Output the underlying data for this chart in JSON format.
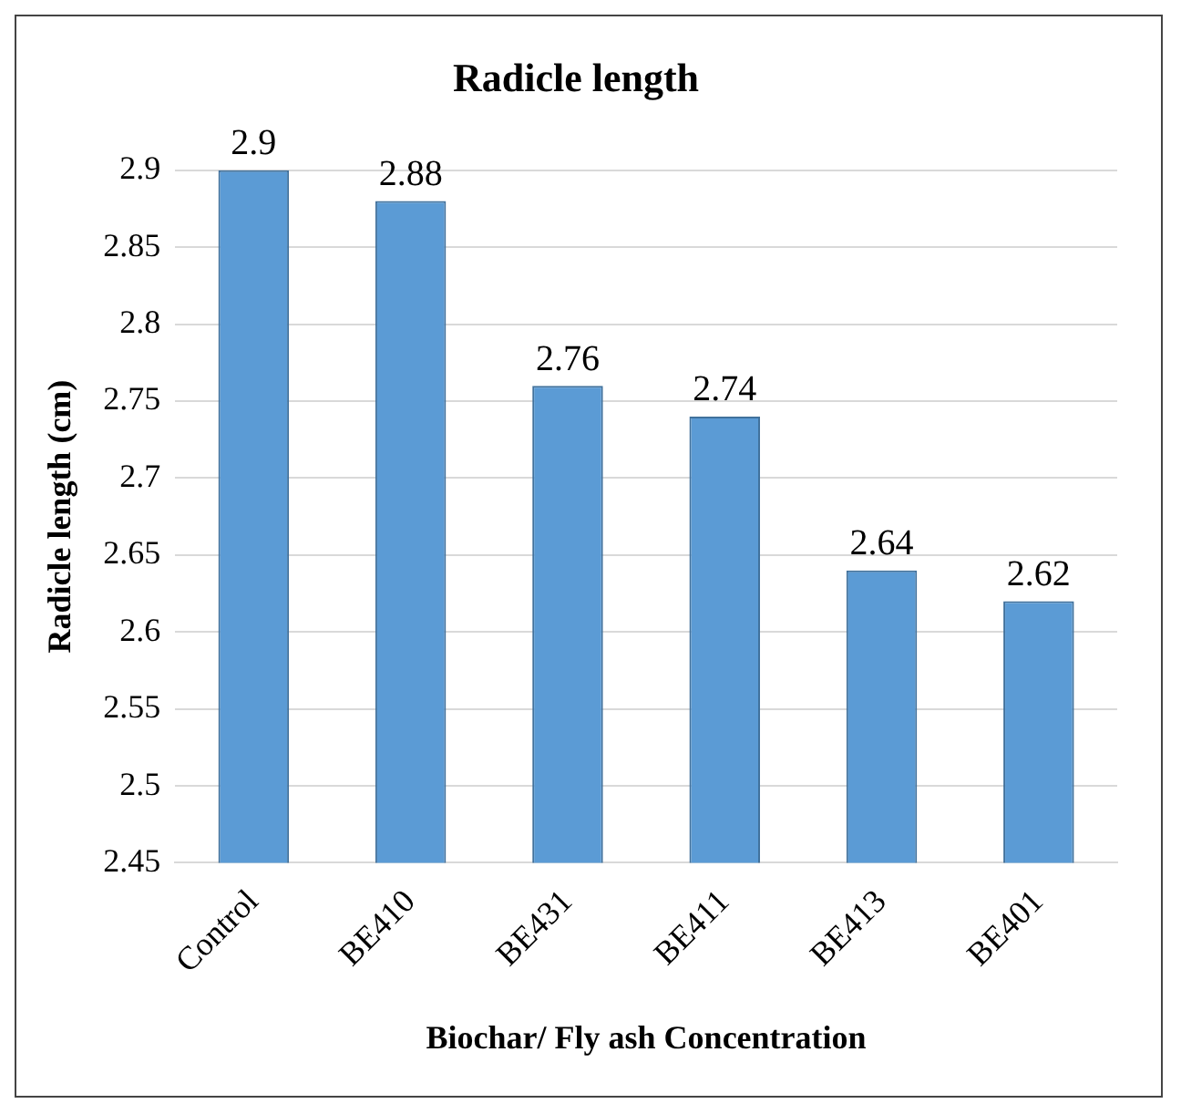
{
  "chart_data": {
    "type": "bar",
    "title": "Radicle length",
    "xlabel": "Biochar/ Fly ash Concentration",
    "ylabel": "Radicle length (cm)",
    "categories": [
      "Control",
      "BE410",
      "BE431",
      "BE411",
      "BE413",
      "BE401"
    ],
    "values": [
      2.9,
      2.88,
      2.76,
      2.74,
      2.64,
      2.62
    ],
    "color": "#5b9bd5",
    "ylim": [
      2.45,
      2.9
    ],
    "yticks": [
      2.45,
      2.5,
      2.55,
      2.6,
      2.65,
      2.7,
      2.75,
      2.8,
      2.85,
      2.9
    ],
    "grid": "y",
    "data_labels": true,
    "legend": false
  }
}
